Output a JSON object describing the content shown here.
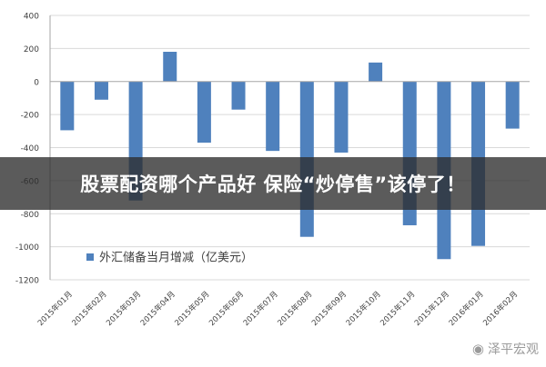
{
  "chart_data": {
    "type": "bar",
    "categories": [
      "2015年01月",
      "2015年02月",
      "2015年03月",
      "2015年04月",
      "2015年05月",
      "2015年06月",
      "2015年07月",
      "2015年08月",
      "2015年09月",
      "2015年10月",
      "2015年11月",
      "2015年12月",
      "2016年01月",
      "2016年02月"
    ],
    "series": [
      {
        "name": "外汇储备当月增减（亿美元）",
        "values": [
          -295,
          -110,
          -720,
          180,
          -370,
          -170,
          -420,
          -940,
          -430,
          115,
          -870,
          -1075,
          -995,
          -285
        ]
      }
    ],
    "ylim": [
      -1200,
      400
    ],
    "yticks": [
      400,
      200,
      0,
      -200,
      -400,
      -600,
      -800,
      -1000,
      -1200
    ],
    "grid": true,
    "legend_position": "bottom-center"
  },
  "colors": {
    "bar": "#4F81BD",
    "grid": "#D9D9D9",
    "axis": "#A6A6A6",
    "banner_text": "#FFFFFF"
  },
  "banner": {
    "title": "股票配资哪个产品好 保险“炒停售”该停了！"
  },
  "watermark": {
    "icon": "wechat-icon",
    "text": "泽平宏观"
  }
}
